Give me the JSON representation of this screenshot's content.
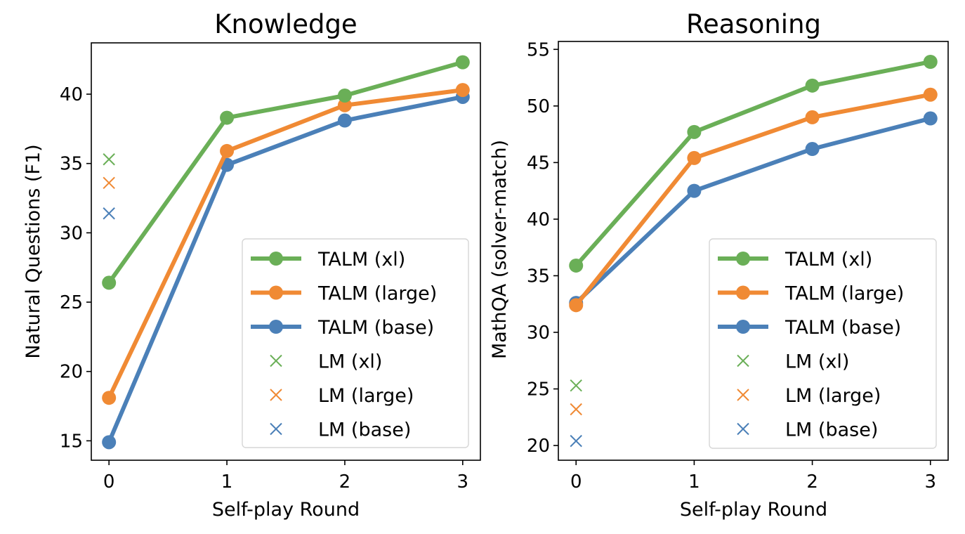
{
  "chart_data": [
    {
      "type": "line",
      "title": "Knowledge",
      "xlabel": "Self-play Round",
      "ylabel": "Natural Questions (F1)",
      "x": [
        0,
        1,
        2,
        3
      ],
      "xticks": [
        "0",
        "1",
        "2",
        "3"
      ],
      "yticks": [
        15,
        20,
        25,
        30,
        35,
        40
      ],
      "xlim": [
        -0.15,
        3.15
      ],
      "ylim": [
        13.6,
        43.7
      ],
      "grid": false,
      "legend_position": "lower-right",
      "series": [
        {
          "name": "TALM (xl)",
          "kind": "line",
          "color": "#6aaf57",
          "values": [
            26.4,
            38.3,
            39.9,
            42.3
          ]
        },
        {
          "name": "TALM (large)",
          "kind": "line",
          "color": "#f08a34",
          "values": [
            18.1,
            35.9,
            39.2,
            40.3
          ]
        },
        {
          "name": "TALM (base)",
          "kind": "line",
          "color": "#4b80b8",
          "values": [
            14.9,
            34.9,
            38.1,
            39.8
          ]
        },
        {
          "name": "LM (xl)",
          "kind": "marker",
          "color": "#6aaf57",
          "x": [
            0
          ],
          "values": [
            35.3
          ]
        },
        {
          "name": "LM (large)",
          "kind": "marker",
          "color": "#f08a34",
          "x": [
            0
          ],
          "values": [
            33.6
          ]
        },
        {
          "name": "LM (base)",
          "kind": "marker",
          "color": "#4b80b8",
          "x": [
            0
          ],
          "values": [
            31.4
          ]
        }
      ]
    },
    {
      "type": "line",
      "title": "Reasoning",
      "xlabel": "Self-play Round",
      "ylabel": "MathQA (solver-match)",
      "x": [
        0,
        1,
        2,
        3
      ],
      "xticks": [
        "0",
        "1",
        "2",
        "3"
      ],
      "yticks": [
        20,
        25,
        30,
        35,
        40,
        45,
        50,
        55
      ],
      "xlim": [
        -0.15,
        3.15
      ],
      "ylim": [
        18.7,
        55.7
      ],
      "grid": false,
      "legend_position": "lower-right",
      "series": [
        {
          "name": "TALM (xl)",
          "kind": "line",
          "color": "#6aaf57",
          "values": [
            35.9,
            47.7,
            51.8,
            53.9
          ]
        },
        {
          "name": "TALM (large)",
          "kind": "line",
          "color": "#f08a34",
          "values": [
            32.4,
            45.4,
            49.0,
            51.0
          ]
        },
        {
          "name": "TALM (base)",
          "kind": "line",
          "color": "#4b80b8",
          "values": [
            32.6,
            42.5,
            46.2,
            48.9
          ]
        },
        {
          "name": "LM (xl)",
          "kind": "marker",
          "color": "#6aaf57",
          "x": [
            0
          ],
          "values": [
            25.3
          ]
        },
        {
          "name": "LM (large)",
          "kind": "marker",
          "color": "#f08a34",
          "x": [
            0
          ],
          "values": [
            23.2
          ]
        },
        {
          "name": "LM (base)",
          "kind": "marker",
          "color": "#4b80b8",
          "x": [
            0
          ],
          "values": [
            20.4
          ]
        }
      ]
    }
  ]
}
